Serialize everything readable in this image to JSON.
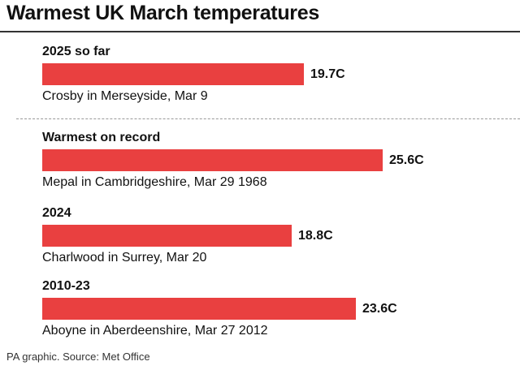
{
  "title": "Warmest UK March temperatures",
  "source": "PA graphic. Source: Met Office",
  "chart_data": {
    "type": "bar",
    "orientation": "horizontal",
    "title": "Warmest UK March temperatures",
    "categories": [
      "2025 so far",
      "Warmest on record",
      "2024",
      "2010-23"
    ],
    "values": [
      19.7,
      25.6,
      18.8,
      23.6
    ],
    "value_labels": [
      "19.7C",
      "25.6C",
      "18.8C",
      "23.6C"
    ],
    "annotations": [
      "Crosby in Merseyside, Mar 9",
      "Mepal in Cambridgeshire, Mar 29 1968",
      "Charlwood in Surrey, Mar 20",
      "Aboyne in Aberdeenshire, Mar 27 2012"
    ],
    "unit": "C",
    "bar_color": "#e94040",
    "xlim": [
      0,
      29
    ],
    "grid": false,
    "legend": "none"
  }
}
